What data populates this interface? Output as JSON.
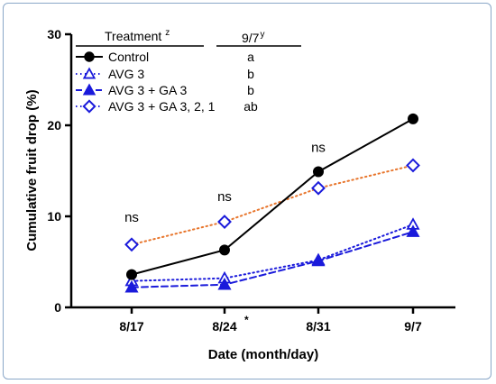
{
  "chart_data": {
    "type": "line",
    "xlabel": "Date (month/day)",
    "ylabel": "Cumulative fruit drop (%)",
    "ylim": [
      0,
      30
    ],
    "yticks": [
      "0",
      "10",
      "20",
      "30"
    ],
    "categories": [
      "8/17",
      "8/24",
      "8/31",
      "9/7"
    ],
    "category_marks": [
      "",
      "*",
      "",
      ""
    ],
    "legend": {
      "header_left": "Treatment",
      "header_left_sup": "z",
      "header_right": "9/7",
      "header_right_sup": "y",
      "placement": "top-left"
    },
    "series": [
      {
        "name": "Control",
        "values": [
          3.6,
          6.3,
          14.9,
          20.7
        ],
        "color": "#000000",
        "line": "solid",
        "marker": "circle-filled",
        "letter": "a"
      },
      {
        "name": "AVG 3",
        "values": [
          2.9,
          3.2,
          5.2,
          9.1
        ],
        "color": "#1a1adb",
        "line": "dotted",
        "marker": "triangle-open",
        "letter": "b"
      },
      {
        "name": "AVG 3 + GA 3",
        "values": [
          2.2,
          2.5,
          5.1,
          8.3
        ],
        "color": "#1a1adb",
        "line": "dashed",
        "marker": "triangle-filled",
        "letter": "b"
      },
      {
        "name": "AVG 3 + GA 3, 2, 1",
        "values": [
          6.9,
          9.4,
          13.1,
          15.6
        ],
        "color": "#1a1adb",
        "line": "dotted",
        "line_color": "#e8762d",
        "marker": "diamond-open",
        "letter": "ab"
      }
    ],
    "annotations": [
      {
        "text": "ns",
        "category": "8/17",
        "y": 9.4
      },
      {
        "text": "ns",
        "category": "8/24",
        "y": 11.7
      },
      {
        "text": "ns",
        "category": "8/31",
        "y": 17.1
      }
    ]
  }
}
